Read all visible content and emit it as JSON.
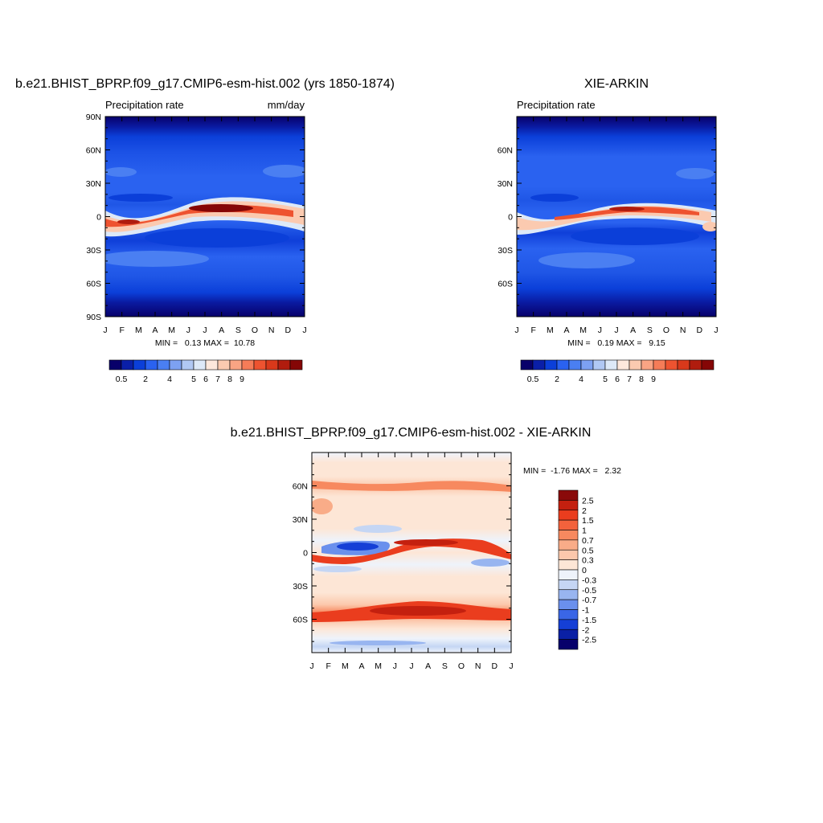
{
  "panels": [
    {
      "title": "b.e21.BHIST_BPRP.f09_g17.CMIP6-esm-hist.002 (yrs 1850-1874)",
      "subtitle_left": "Precipitation rate",
      "subtitle_right": "mm/day",
      "stats": "MIN =   0.13 MAX =  10.78"
    },
    {
      "title": "XIE-ARKIN",
      "subtitle_left": "Precipitation rate",
      "subtitle_right": "",
      "stats": "MIN =   0.19 MAX =   9.15"
    },
    {
      "title": "b.e21.BHIST_BPRP.f09_g17.CMIP6-esm-hist.002 - XIE-ARKIN",
      "subtitle_left": "",
      "subtitle_right": "",
      "stats": "MIN =  -1.76 MAX =   2.32"
    }
  ],
  "chart_data": [
    {
      "type": "heatmap",
      "title": "b.e21.BHIST_BPRP.f09_g17.CMIP6-esm-hist.002 (yrs 1850-1874)",
      "subtitle": "Precipitation rate",
      "units": "mm/day",
      "x_ticks": [
        "J",
        "F",
        "M",
        "A",
        "M",
        "J",
        "J",
        "A",
        "S",
        "O",
        "N",
        "D",
        "J"
      ],
      "y_ticks": [
        {
          "value": 90,
          "label": "90N"
        },
        {
          "value": 60,
          "label": "60N"
        },
        {
          "value": 30,
          "label": "30N"
        },
        {
          "value": 0,
          "label": "0"
        },
        {
          "value": -30,
          "label": "30S"
        },
        {
          "value": -60,
          "label": "60S"
        },
        {
          "value": -90,
          "label": "90S"
        }
      ],
      "ylim": [
        -90,
        90
      ],
      "min": 0.13,
      "max": 10.78,
      "colorbar": {
        "orientation": "horizontal",
        "labels": [
          "0.5",
          "2",
          "4",
          "5",
          "6",
          "7",
          "8",
          "9"
        ],
        "colors": [
          "#08006a",
          "#0a1fa8",
          "#0b3fd9",
          "#2a62f0",
          "#4a7ff2",
          "#7da1f2",
          "#b0c8f4",
          "#dde9f8",
          "#fde8dc",
          "#fbcab0",
          "#f9a484",
          "#f57c58",
          "#ee5330",
          "#d9391b",
          "#b01c0e",
          "#850606"
        ]
      }
    },
    {
      "type": "heatmap",
      "title": "XIE-ARKIN",
      "subtitle": "Precipitation rate",
      "x_ticks": [
        "J",
        "F",
        "M",
        "A",
        "M",
        "J",
        "J",
        "A",
        "S",
        "O",
        "N",
        "D",
        "J"
      ],
      "y_ticks": [
        {
          "value": 60,
          "label": "60N"
        },
        {
          "value": 30,
          "label": "30N"
        },
        {
          "value": 0,
          "label": "0"
        },
        {
          "value": -30,
          "label": "30S"
        },
        {
          "value": -60,
          "label": "60S"
        }
      ],
      "ylim": [
        -90,
        90
      ],
      "min": 0.19,
      "max": 9.15,
      "colorbar": {
        "orientation": "horizontal",
        "labels": [
          "0.5",
          "2",
          "4",
          "5",
          "6",
          "7",
          "8",
          "9"
        ],
        "colors": [
          "#08006a",
          "#0a1fa8",
          "#0b3fd9",
          "#2a62f0",
          "#4a7ff2",
          "#7da1f2",
          "#b0c8f4",
          "#dde9f8",
          "#fde8dc",
          "#fbcab0",
          "#f9a484",
          "#f57c58",
          "#ee5330",
          "#d9391b",
          "#b01c0e",
          "#850606"
        ]
      }
    },
    {
      "type": "heatmap",
      "title": "b.e21.BHIST_BPRP.f09_g17.CMIP6-esm-hist.002 - XIE-ARKIN",
      "x_ticks": [
        "J",
        "F",
        "M",
        "A",
        "M",
        "J",
        "J",
        "A",
        "S",
        "O",
        "N",
        "D",
        "J"
      ],
      "y_ticks": [
        {
          "value": 60,
          "label": "60N"
        },
        {
          "value": 30,
          "label": "30N"
        },
        {
          "value": 0,
          "label": "0"
        },
        {
          "value": -30,
          "label": "30S"
        },
        {
          "value": -60,
          "label": "60S"
        }
      ],
      "ylim": [
        -90,
        90
      ],
      "min": -1.76,
      "max": 2.32,
      "colorbar": {
        "orientation": "vertical",
        "labels": [
          "2.5",
          "2",
          "1.5",
          "1",
          "0.7",
          "0.5",
          "0.3",
          "0",
          "-0.3",
          "-0.5",
          "-0.7",
          "-1",
          "-1.5",
          "-2",
          "-2.5"
        ],
        "colors": [
          "#8a0a0a",
          "#c4200f",
          "#ea3d1e",
          "#f3623c",
          "#f7895f",
          "#f9ac88",
          "#fcc8ac",
          "#fde6d6",
          "#eef3fb",
          "#c5d6f4",
          "#98b5f0",
          "#6a90ed",
          "#3a66e6",
          "#153fd6",
          "#0a20a5",
          "#07006b"
        ]
      }
    }
  ]
}
